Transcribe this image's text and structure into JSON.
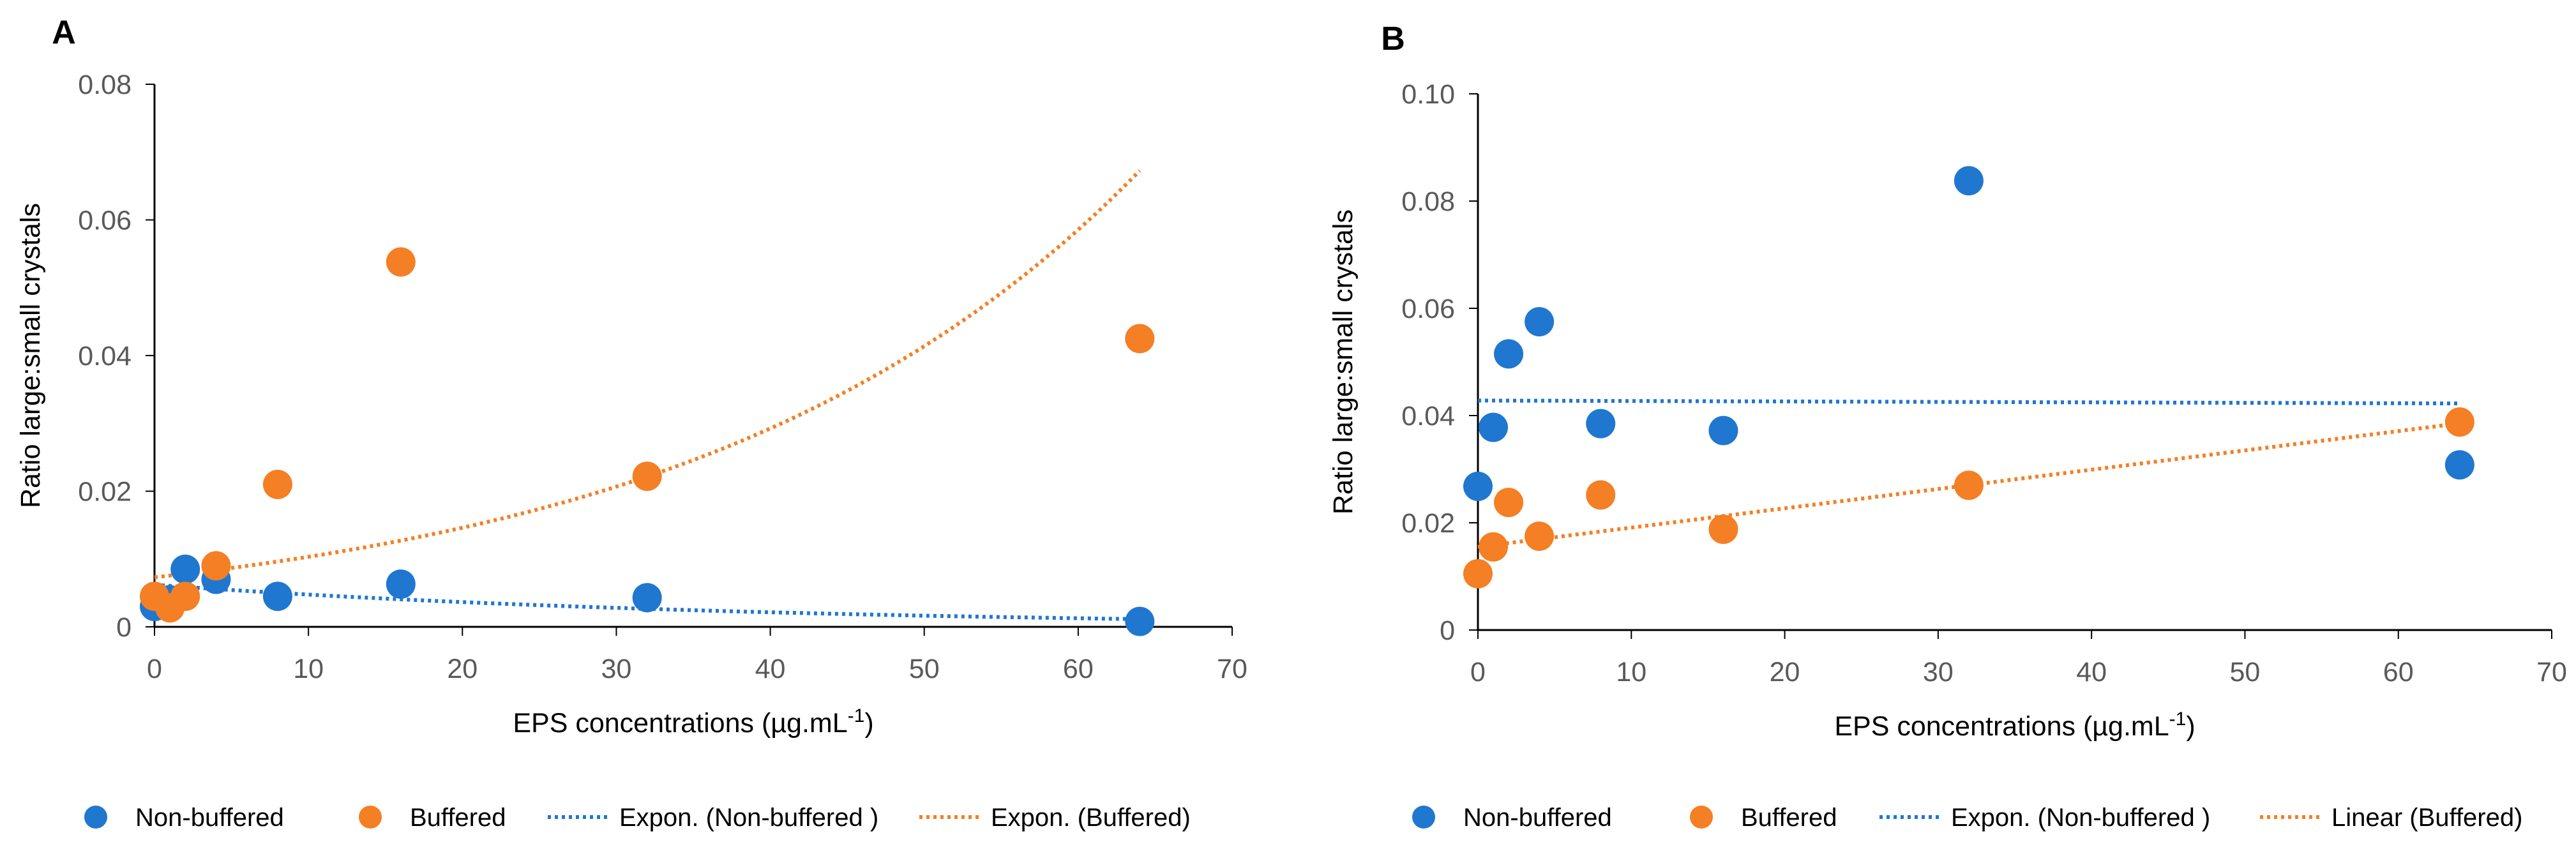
{
  "colors": {
    "non_buffered": "#1f77d0",
    "buffered": "#f47f24",
    "axis": "#000000",
    "tick_text": "#595959"
  },
  "chart_data": [
    {
      "type": "scatter",
      "panel": "A",
      "xlabel": "EPS concentrations (µg.mL",
      "xlabel_sup": "-1",
      "xlabel_suffix": ")",
      "ylabel": "Ratio large:small crystals",
      "xlim": [
        0,
        70
      ],
      "ylim": [
        0,
        0.08
      ],
      "xticks": [
        0,
        10,
        20,
        30,
        40,
        50,
        60,
        70
      ],
      "yticks": [
        0,
        0.02,
        0.04,
        0.06,
        0.08
      ],
      "ytick_labels": [
        "0",
        "0.02",
        "0.04",
        "0.06",
        "0.08"
      ],
      "grid": false,
      "legend_position": "bottom",
      "series": [
        {
          "name": "Non-buffered",
          "kind": "points",
          "color_key": "non_buffered",
          "x": [
            0,
            1,
            2,
            4,
            8,
            16,
            32,
            64
          ],
          "y": [
            0.003,
            0.004,
            0.0085,
            0.007,
            0.0045,
            0.0063,
            0.0043,
            0.0008
          ]
        },
        {
          "name": "Buffered",
          "kind": "points",
          "color_key": "buffered",
          "x": [
            0,
            1,
            2,
            4,
            8,
            16,
            32,
            64
          ],
          "y": [
            0.0045,
            0.0028,
            0.0045,
            0.009,
            0.021,
            0.0538,
            0.0222,
            0.0425
          ]
        },
        {
          "name": "Expon. (Non-buffered )",
          "kind": "trend",
          "fit": "exponential",
          "color_key": "non_buffered",
          "a": 0.0062,
          "b": -0.0265,
          "x_range": [
            0,
            64
          ]
        },
        {
          "name": "Expon. (Buffered)",
          "kind": "trend",
          "fit": "exponential",
          "color_key": "buffered",
          "a": 0.0073,
          "b": 0.0347,
          "x_range": [
            0,
            64
          ]
        }
      ],
      "legend": [
        "Non-buffered",
        "Buffered",
        "Expon. (Non-buffered )",
        "Expon. (Buffered)"
      ]
    },
    {
      "type": "scatter",
      "panel": "B",
      "xlabel": "EPS concentrations (µg.mL",
      "xlabel_sup": "-1",
      "xlabel_suffix": ")",
      "ylabel": "Ratio large:small crystals",
      "xlim": [
        0,
        70
      ],
      "ylim": [
        0,
        0.1
      ],
      "xticks": [
        0,
        10,
        20,
        30,
        40,
        50,
        60,
        70
      ],
      "yticks": [
        0,
        0.02,
        0.04,
        0.06,
        0.08,
        0.1
      ],
      "ytick_labels": [
        "0",
        "0.02",
        "0.04",
        "0.06",
        "0.08",
        "0.10"
      ],
      "grid": false,
      "legend_position": "bottom",
      "series": [
        {
          "name": "Non-buffered",
          "kind": "points",
          "color_key": "non_buffered",
          "x": [
            0,
            1,
            2,
            4,
            8,
            16,
            32,
            64
          ],
          "y": [
            0.0268,
            0.0378,
            0.0515,
            0.0575,
            0.0385,
            0.0372,
            0.0838,
            0.0308
          ]
        },
        {
          "name": "Buffered",
          "kind": "points",
          "color_key": "buffered",
          "x": [
            0,
            1,
            2,
            4,
            8,
            16,
            32,
            64
          ],
          "y": [
            0.0105,
            0.0155,
            0.0238,
            0.0175,
            0.0252,
            0.0188,
            0.027,
            0.0388
          ]
        },
        {
          "name": "Expon. (Non-buffered )",
          "kind": "trend",
          "fit": "exponential",
          "color_key": "non_buffered",
          "a": 0.0428,
          "b": -0.0002,
          "x_range": [
            0,
            64
          ]
        },
        {
          "name": "Linear (Buffered)",
          "kind": "trend",
          "fit": "linear",
          "color_key": "buffered",
          "a": 0.0155,
          "b": 0.00036,
          "x_range": [
            0,
            64
          ]
        }
      ],
      "legend": [
        "Non-buffered",
        "Buffered",
        "Expon. (Non-buffered )",
        "Linear (Buffered)"
      ]
    }
  ]
}
